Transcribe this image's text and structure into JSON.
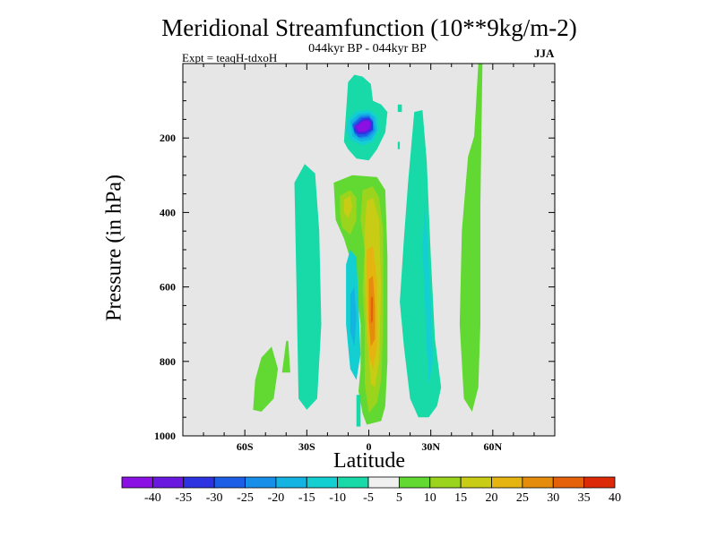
{
  "chart_data": {
    "type": "heatmap",
    "title": "Meridional Streamfunction (10**9kg/m-2)",
    "subtitle": "044kyr BP - 044kyr BP",
    "expt_label": "Expt = teaqH-tdxoH",
    "season": "JJA",
    "xlabel": "Latitude",
    "ylabel": "Pressure (in hPa)",
    "xlim": [
      -90,
      90
    ],
    "ylim": [
      1000,
      0
    ],
    "xticks": [
      {
        "value": -60,
        "label": "60S"
      },
      {
        "value": -30,
        "label": "30S"
      },
      {
        "value": 0,
        "label": "0"
      },
      {
        "value": 30,
        "label": "30N"
      },
      {
        "value": 60,
        "label": "60N"
      }
    ],
    "yticks": [
      {
        "value": 200,
        "label": "200"
      },
      {
        "value": 400,
        "label": "400"
      },
      {
        "value": 600,
        "label": "600"
      },
      {
        "value": 800,
        "label": "800"
      },
      {
        "value": 1000,
        "label": "1000"
      }
    ],
    "background_color": "#e6e6e6",
    "colorbar": {
      "labels": [
        "-40",
        "-35",
        "-30",
        "-25",
        "-20",
        "-15",
        "-10",
        "-5",
        "5",
        "10",
        "15",
        "20",
        "25",
        "30",
        "35",
        "40"
      ],
      "colors": [
        "#8a10e4",
        "#6a18e0",
        "#2d33e0",
        "#1c5fe6",
        "#178fe8",
        "#14b4e2",
        "#14cfd2",
        "#18d9a8",
        "#f0f0f0",
        "#62d832",
        "#9ad41c",
        "#c8cc14",
        "#e6b410",
        "#e68c0c",
        "#e6620a",
        "#dc2a08"
      ]
    },
    "regions": [
      {
        "name": "southern-green-blob",
        "level": 5,
        "color": "#62d832",
        "points": [
          [
            -56,
            930
          ],
          [
            -52,
            935
          ],
          [
            -46,
            900
          ],
          [
            -44,
            820
          ],
          [
            -47,
            760
          ],
          [
            -52,
            790
          ],
          [
            -55,
            850
          ]
        ]
      },
      {
        "name": "southern-green-sliver",
        "level": 5,
        "color": "#62d832",
        "points": [
          [
            -42,
            830
          ],
          [
            -40,
            745
          ],
          [
            -39,
            745
          ],
          [
            -38,
            830
          ]
        ]
      },
      {
        "name": "southern-teal-column",
        "level": -5,
        "color": "#18d9a8",
        "points": [
          [
            -36,
            320
          ],
          [
            -31,
            270
          ],
          [
            -26,
            295
          ],
          [
            -24,
            450
          ],
          [
            -23,
            700
          ],
          [
            -25,
            900
          ],
          [
            -30,
            930
          ],
          [
            -34,
            900
          ],
          [
            -35,
            600
          ]
        ]
      },
      {
        "name": "upper-teal-envelope",
        "level": -5,
        "color": "#18d9a8",
        "points": [
          [
            -12,
            210
          ],
          [
            -10,
            50
          ],
          [
            -7,
            30
          ],
          [
            -3,
            35
          ],
          [
            1,
            55
          ],
          [
            2,
            100
          ],
          [
            6,
            110
          ],
          [
            9,
            130
          ],
          [
            8,
            185
          ],
          [
            4,
            230
          ],
          [
            0,
            260
          ],
          [
            -6,
            255
          ],
          [
            -10,
            230
          ]
        ]
      },
      {
        "name": "upper-teal-sliver",
        "level": -5,
        "color": "#18d9a8",
        "points": [
          [
            14,
            110
          ],
          [
            16,
            110
          ],
          [
            16,
            130
          ],
          [
            14,
            130
          ]
        ]
      },
      {
        "name": "upper-teal-speck",
        "level": -5,
        "color": "#18d9a8",
        "points": [
          [
            14,
            210
          ],
          [
            15,
            210
          ],
          [
            15,
            230
          ],
          [
            14,
            230
          ]
        ]
      },
      {
        "name": "cyan-ring",
        "level": -10,
        "color": "#14cfd2",
        "points": [
          [
            -10,
            150
          ],
          [
            -6,
            128
          ],
          [
            0,
            125
          ],
          [
            4,
            140
          ],
          [
            5,
            175
          ],
          [
            2,
            210
          ],
          [
            -3,
            220
          ],
          [
            -9,
            205
          ],
          [
            -11,
            180
          ]
        ]
      },
      {
        "name": "blue-ring",
        "level": -15,
        "color": "#14b4e2",
        "points": [
          [
            -9,
            155
          ],
          [
            -5,
            135
          ],
          [
            0,
            132
          ],
          [
            3,
            145
          ],
          [
            4,
            180
          ],
          [
            1,
            205
          ],
          [
            -4,
            210
          ],
          [
            -8,
            195
          ]
        ]
      },
      {
        "name": "blue-ring-2",
        "level": -20,
        "color": "#178fe8",
        "points": [
          [
            -8,
            160
          ],
          [
            -4,
            140
          ],
          [
            0,
            138
          ],
          [
            2,
            150
          ],
          [
            3,
            180
          ],
          [
            0,
            198
          ],
          [
            -4,
            202
          ],
          [
            -7,
            190
          ]
        ]
      },
      {
        "name": "deep-blue-ring",
        "level": -25,
        "color": "#1c5fe6",
        "points": [
          [
            -8,
            165
          ],
          [
            -4,
            145
          ],
          [
            0,
            142
          ],
          [
            2,
            155
          ],
          [
            2,
            180
          ],
          [
            -1,
            195
          ],
          [
            -5,
            198
          ],
          [
            -7,
            185
          ]
        ]
      },
      {
        "name": "indigo-ring",
        "level": -30,
        "color": "#2d33e0",
        "points": [
          [
            -7,
            168
          ],
          [
            -3,
            148
          ],
          [
            0,
            146
          ],
          [
            2,
            158
          ],
          [
            2,
            178
          ],
          [
            -2,
            190
          ],
          [
            -5,
            190
          ],
          [
            -7,
            182
          ]
        ]
      },
      {
        "name": "violet-ring",
        "level": -35,
        "color": "#6a18e0",
        "points": [
          [
            -7,
            170
          ],
          [
            -3,
            152
          ],
          [
            0,
            150
          ],
          [
            1,
            160
          ],
          [
            1,
            175
          ],
          [
            -2,
            185
          ],
          [
            -5,
            185
          ],
          [
            -6,
            178
          ]
        ]
      },
      {
        "name": "purple-core",
        "level": -40,
        "color": "#8a10e4",
        "points": [
          [
            -6,
            170
          ],
          [
            -3,
            155
          ],
          [
            0,
            154
          ],
          [
            1,
            162
          ],
          [
            0,
            175
          ],
          [
            -2,
            182
          ],
          [
            -5,
            182
          ]
        ]
      },
      {
        "name": "tropical-green",
        "level": 5,
        "color": "#62d832",
        "points": [
          [
            -17,
            320
          ],
          [
            -8,
            300
          ],
          [
            4,
            305
          ],
          [
            8,
            340
          ],
          [
            9,
            520
          ],
          [
            9,
            800
          ],
          [
            8,
            920
          ],
          [
            6,
            960
          ],
          [
            -1,
            970
          ],
          [
            -3,
            940
          ],
          [
            -5,
            880
          ],
          [
            -4,
            820
          ],
          [
            -4,
            700
          ],
          [
            -7,
            560
          ],
          [
            -12,
            470
          ],
          [
            -16,
            420
          ]
        ]
      },
      {
        "name": "tropical-lime",
        "level": 10,
        "color": "#9ad41c",
        "points": [
          [
            -14,
            355
          ],
          [
            -9,
            340
          ],
          [
            -6,
            360
          ],
          [
            -6,
            420
          ],
          [
            -9,
            460
          ],
          [
            -13,
            440
          ],
          [
            -14,
            400
          ]
        ]
      },
      {
        "name": "tropical-core-lime",
        "level": 10,
        "color": "#9ad41c",
        "points": [
          [
            -3,
            340
          ],
          [
            2,
            330
          ],
          [
            5,
            360
          ],
          [
            7,
            450
          ],
          [
            7,
            700
          ],
          [
            6,
            850
          ],
          [
            4,
            910
          ],
          [
            0,
            940
          ],
          [
            -2,
            860
          ],
          [
            -2,
            700
          ],
          [
            -3,
            600
          ],
          [
            -2,
            500
          ],
          [
            -4,
            420
          ]
        ]
      },
      {
        "name": "tropical-yellow",
        "level": 15,
        "color": "#c8cc14",
        "points": [
          [
            -12,
            365
          ],
          [
            -9,
            355
          ],
          [
            -8,
            385
          ],
          [
            -10,
            415
          ],
          [
            -12,
            400
          ]
        ]
      },
      {
        "name": "tropical-core-yellow",
        "level": 15,
        "color": "#c8cc14",
        "points": [
          [
            -1,
            370
          ],
          [
            2,
            360
          ],
          [
            5,
            420
          ],
          [
            6,
            600
          ],
          [
            5,
            800
          ],
          [
            3,
            870
          ],
          [
            1,
            860
          ],
          [
            -1,
            720
          ],
          [
            -2,
            560
          ],
          [
            -2,
            450
          ]
        ]
      },
      {
        "name": "tropical-gold",
        "level": 20,
        "color": "#e6b410",
        "points": [
          [
            -1,
            500
          ],
          [
            2,
            490
          ],
          [
            4,
            580
          ],
          [
            4,
            760
          ],
          [
            2,
            820
          ],
          [
            0,
            780
          ],
          [
            -1,
            640
          ]
        ]
      },
      {
        "name": "tropical-orange",
        "level": 25,
        "color": "#e68c0c",
        "points": [
          [
            0,
            580
          ],
          [
            2,
            570
          ],
          [
            3,
            650
          ],
          [
            3,
            740
          ],
          [
            1,
            760
          ],
          [
            0,
            690
          ]
        ]
      },
      {
        "name": "tropical-dark-orange",
        "level": 30,
        "color": "#e6620a",
        "points": [
          [
            1,
            630
          ],
          [
            2,
            625
          ],
          [
            2,
            690
          ],
          [
            1,
            700
          ]
        ]
      },
      {
        "name": "equatorial-blue",
        "level": -10,
        "color": "#14cfd2",
        "points": [
          [
            -11,
            540
          ],
          [
            -9,
            500
          ],
          [
            -6,
            520
          ],
          [
            -5,
            640
          ],
          [
            -4,
            780
          ],
          [
            -6,
            850
          ],
          [
            -9,
            820
          ],
          [
            -11,
            700
          ]
        ]
      },
      {
        "name": "equatorial-sky",
        "level": -15,
        "color": "#14b4e2",
        "points": [
          [
            -9,
            620
          ],
          [
            -7,
            600
          ],
          [
            -6,
            680
          ],
          [
            -7,
            760
          ],
          [
            -9,
            720
          ]
        ]
      },
      {
        "name": "equatorial-teal-sliver",
        "level": -5,
        "color": "#18d9a8",
        "points": [
          [
            -6,
            890
          ],
          [
            -4,
            890
          ],
          [
            -4,
            975
          ],
          [
            -6,
            975
          ]
        ]
      },
      {
        "name": "northern-teal-column",
        "level": -5,
        "color": "#18d9a8",
        "points": [
          [
            22,
            130
          ],
          [
            26,
            125
          ],
          [
            28,
            260
          ],
          [
            30,
            520
          ],
          [
            32,
            740
          ],
          [
            35,
            870
          ],
          [
            33,
            920
          ],
          [
            29,
            950
          ],
          [
            24,
            950
          ],
          [
            20,
            900
          ],
          [
            17,
            760
          ],
          [
            15,
            640
          ],
          [
            17,
            470
          ],
          [
            19,
            320
          ]
        ]
      },
      {
        "name": "northern-blue-column",
        "level": -10,
        "color": "#14cfd2",
        "points": [
          [
            27,
            380
          ],
          [
            28,
            440
          ],
          [
            30,
            640
          ],
          [
            31,
            800
          ],
          [
            29,
            860
          ],
          [
            28,
            760
          ],
          [
            27,
            620
          ],
          [
            26,
            500
          ]
        ]
      },
      {
        "name": "northern-green-column",
        "level": 5,
        "color": "#62d832",
        "points": [
          [
            48,
            250
          ],
          [
            51,
            195
          ],
          [
            53,
            0
          ],
          [
            55,
            0
          ],
          [
            54,
            380
          ],
          [
            54,
            700
          ],
          [
            53,
            870
          ],
          [
            50,
            935
          ],
          [
            46,
            900
          ],
          [
            44,
            700
          ],
          [
            45,
            450
          ]
        ]
      }
    ]
  }
}
